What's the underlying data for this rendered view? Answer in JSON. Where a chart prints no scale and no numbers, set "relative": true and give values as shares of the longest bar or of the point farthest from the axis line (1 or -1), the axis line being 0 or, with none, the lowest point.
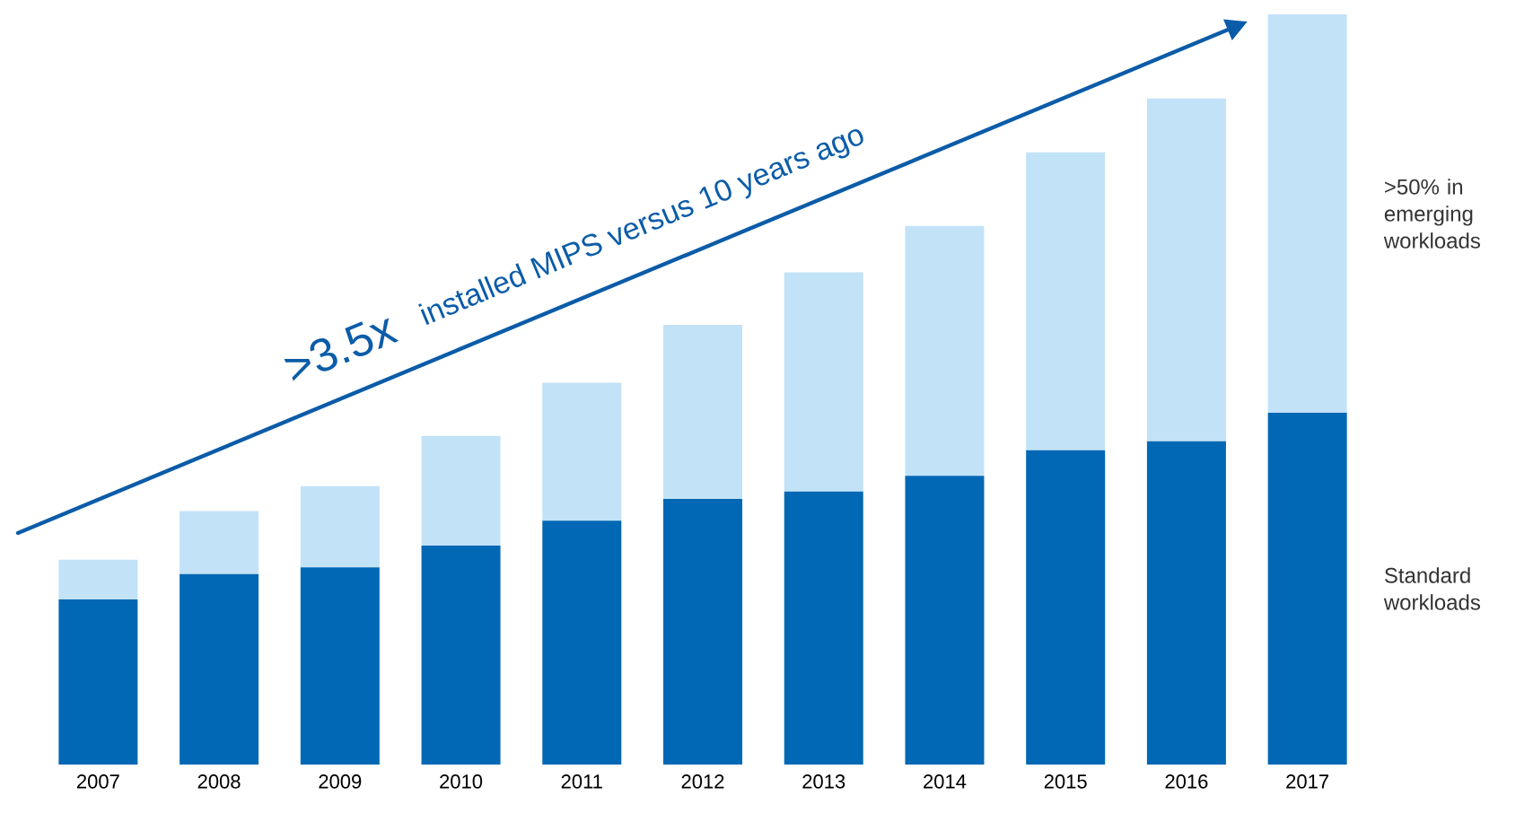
{
  "chart_data": {
    "type": "bar",
    "stacked": true,
    "relative": true,
    "categories": [
      "2007",
      "2008",
      "2009",
      "2010",
      "2011",
      "2012",
      "2013",
      "2014",
      "2015",
      "2016",
      "2017"
    ],
    "series": [
      {
        "name": "Standard workloads",
        "color": "#0068b4",
        "values": [
          0.22,
          0.254,
          0.263,
          0.292,
          0.325,
          0.354,
          0.364,
          0.385,
          0.419,
          0.431,
          0.469
        ]
      },
      {
        "name": ">50% in emerging workloads",
        "color": "#c2e2f7",
        "values": [
          0.053,
          0.084,
          0.108,
          0.146,
          0.184,
          0.232,
          0.292,
          0.333,
          0.397,
          0.457,
          0.531
        ]
      }
    ],
    "annotations": [
      ">3.5x",
      "installed MIPS versus 10 years ago"
    ]
  }
}
